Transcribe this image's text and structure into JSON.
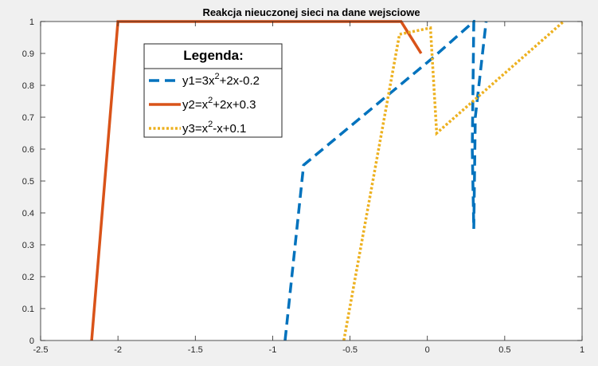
{
  "chart_data": {
    "type": "line",
    "title": "Reakcja nieuczonej sieci na dane wejsciowe",
    "xlabel": "",
    "ylabel": "",
    "xlim": [
      -2.5,
      1
    ],
    "ylim": [
      0,
      1
    ],
    "grid": false,
    "x_ticks": [
      "-2.5",
      "-2",
      "-1.5",
      "-1",
      "-0.5",
      "0",
      "0.5",
      "1"
    ],
    "y_ticks": [
      "0",
      "0.1",
      "0.2",
      "0.3",
      "0.4",
      "0.5",
      "0.6",
      "0.7",
      "0.8",
      "0.9",
      "1"
    ],
    "legend": {
      "title": "Legenda:",
      "position": "upper-left (inside axes)"
    },
    "series": [
      {
        "name_parts": [
          "y1=3x",
          "2",
          "+2x-0.2"
        ],
        "color": "#0072bd",
        "style": "dashed",
        "x": [
          -0.92,
          -0.8,
          0.02,
          0.3,
          0.29,
          0.3,
          0.31,
          0.38
        ],
        "y": [
          0,
          0.55,
          0.88,
          1.0,
          0.6,
          0.35,
          0.7,
          1.0
        ]
      },
      {
        "name_parts": [
          "y2=x",
          "2",
          "+2x+0.3"
        ],
        "color": "#d95319",
        "style": "solid",
        "x": [
          -2.17,
          -2.0,
          -0.17,
          -0.04
        ],
        "y": [
          0,
          1.0,
          1.0,
          0.9
        ]
      },
      {
        "name_parts": [
          "y3=x",
          "2",
          "-x+0.1"
        ],
        "color": "#edb120",
        "style": "dotted",
        "x": [
          -0.54,
          -0.18,
          0.02,
          0.06,
          0.88
        ],
        "y": [
          0,
          0.96,
          0.98,
          0.65,
          1.0
        ]
      }
    ]
  }
}
